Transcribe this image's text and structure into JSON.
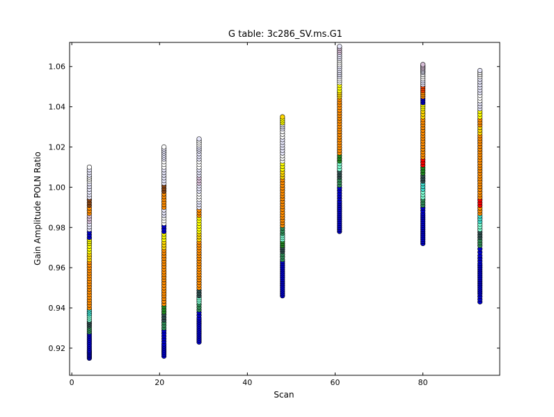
{
  "chart_data": {
    "type": "scatter",
    "title": "G table: 3c286_SV.ms.G1",
    "xlabel": "Scan",
    "ylabel": "Gain Amplitude POLN Ratio",
    "xlim": [
      -0.5,
      97.5
    ],
    "ylim": [
      0.9065,
      1.072
    ],
    "xticks": [
      0,
      20,
      40,
      60,
      80
    ],
    "xtick_labels": [
      "0",
      "20",
      "40",
      "60",
      "80"
    ],
    "yticks": [
      0.92,
      0.94,
      0.96,
      0.98,
      1.0,
      1.02,
      1.04,
      1.06
    ],
    "ytick_labels": [
      "0.92",
      "0.94",
      "0.96",
      "0.98",
      "1.00",
      "1.02",
      "1.04",
      "1.06"
    ],
    "grid": false,
    "legend": "none",
    "marker": "circle",
    "marker_edge_color": "#000000",
    "series": [
      {
        "scan": 4,
        "points": [
          {
            "y": 0.915,
            "color": "#0000cd"
          },
          {
            "y": 0.917,
            "color": "#0000cd"
          },
          {
            "y": 0.919,
            "color": "#0000cd"
          },
          {
            "y": 0.922,
            "color": "#0000cd"
          },
          {
            "y": 0.925,
            "color": "#0000cd"
          },
          {
            "y": 0.928,
            "color": "#2e8b57"
          },
          {
            "y": 0.931,
            "color": "#2f4f4f"
          },
          {
            "y": 0.934,
            "color": "#7fffd4"
          },
          {
            "y": 0.937,
            "color": "#40e0d0"
          },
          {
            "y": 0.94,
            "color": "#ff8c00"
          },
          {
            "y": 0.944,
            "color": "#ff8c00"
          },
          {
            "y": 0.948,
            "color": "#ff8c00"
          },
          {
            "y": 0.952,
            "color": "#ff8c00"
          },
          {
            "y": 0.956,
            "color": "#ff8c00"
          },
          {
            "y": 0.96,
            "color": "#ff8c00"
          },
          {
            "y": 0.964,
            "color": "#ffd700"
          },
          {
            "y": 0.968,
            "color": "#ffff00"
          },
          {
            "y": 0.972,
            "color": "#ffff00"
          },
          {
            "y": 0.975,
            "color": "#0000cd"
          },
          {
            "y": 0.979,
            "color": "#e6e6fa"
          },
          {
            "y": 0.983,
            "color": "#d8bfd8"
          },
          {
            "y": 0.987,
            "color": "#ff8c00"
          },
          {
            "y": 0.991,
            "color": "#8b4513"
          },
          {
            "y": 0.995,
            "color": "#e6e6fa"
          },
          {
            "y": 0.999,
            "color": "#e6e6fa"
          },
          {
            "y": 1.003,
            "color": "#ffffff"
          },
          {
            "y": 1.006,
            "color": "#e6e6fa"
          },
          {
            "y": 1.01,
            "color": "#ffffff"
          }
        ]
      },
      {
        "scan": 21,
        "points": [
          {
            "y": 0.916,
            "color": "#0000cd"
          },
          {
            "y": 0.919,
            "color": "#0000cd"
          },
          {
            "y": 0.922,
            "color": "#0000cd"
          },
          {
            "y": 0.926,
            "color": "#0000cd"
          },
          {
            "y": 0.93,
            "color": "#2e8b57"
          },
          {
            "y": 0.934,
            "color": "#2f4f4f"
          },
          {
            "y": 0.938,
            "color": "#228b22"
          },
          {
            "y": 0.942,
            "color": "#ff8c00"
          },
          {
            "y": 0.946,
            "color": "#ff8c00"
          },
          {
            "y": 0.95,
            "color": "#ff8c00"
          },
          {
            "y": 0.954,
            "color": "#ff8c00"
          },
          {
            "y": 0.958,
            "color": "#ff8c00"
          },
          {
            "y": 0.962,
            "color": "#ff8c00"
          },
          {
            "y": 0.966,
            "color": "#ff8c00"
          },
          {
            "y": 0.97,
            "color": "#ffd700"
          },
          {
            "y": 0.974,
            "color": "#ffff00"
          },
          {
            "y": 0.978,
            "color": "#0000cd"
          },
          {
            "y": 0.982,
            "color": "#ffffff"
          },
          {
            "y": 0.986,
            "color": "#e6e6fa"
          },
          {
            "y": 0.99,
            "color": "#ff8c00"
          },
          {
            "y": 0.994,
            "color": "#ff8c00"
          },
          {
            "y": 0.998,
            "color": "#8b4513"
          },
          {
            "y": 1.002,
            "color": "#e6e6fa"
          },
          {
            "y": 1.006,
            "color": "#e6e6fa"
          },
          {
            "y": 1.01,
            "color": "#ffffff"
          },
          {
            "y": 1.014,
            "color": "#e6e6fa"
          },
          {
            "y": 1.017,
            "color": "#e6e6fa"
          },
          {
            "y": 1.02,
            "color": "#ffffff"
          }
        ]
      },
      {
        "scan": 29,
        "points": [
          {
            "y": 0.923,
            "color": "#0000cd"
          },
          {
            "y": 0.926,
            "color": "#0000cd"
          },
          {
            "y": 0.929,
            "color": "#0000cd"
          },
          {
            "y": 0.932,
            "color": "#0000cd"
          },
          {
            "y": 0.935,
            "color": "#0000cd"
          },
          {
            "y": 0.939,
            "color": "#2e8b57"
          },
          {
            "y": 0.943,
            "color": "#7fffd4"
          },
          {
            "y": 0.946,
            "color": "#2f4f4f"
          },
          {
            "y": 0.95,
            "color": "#ff8c00"
          },
          {
            "y": 0.954,
            "color": "#ff8c00"
          },
          {
            "y": 0.958,
            "color": "#ff8c00"
          },
          {
            "y": 0.962,
            "color": "#ff8c00"
          },
          {
            "y": 0.966,
            "color": "#ff8c00"
          },
          {
            "y": 0.97,
            "color": "#ff8c00"
          },
          {
            "y": 0.974,
            "color": "#ffd700"
          },
          {
            "y": 0.978,
            "color": "#ffff00"
          },
          {
            "y": 0.982,
            "color": "#ffff00"
          },
          {
            "y": 0.986,
            "color": "#ff8c00"
          },
          {
            "y": 0.99,
            "color": "#e6e6fa"
          },
          {
            "y": 0.994,
            "color": "#ffffff"
          },
          {
            "y": 0.998,
            "color": "#e6e6fa"
          },
          {
            "y": 1.002,
            "color": "#d8bfd8"
          },
          {
            "y": 1.006,
            "color": "#e6e6fa"
          },
          {
            "y": 1.01,
            "color": "#ffffff"
          },
          {
            "y": 1.014,
            "color": "#e6e6fa"
          },
          {
            "y": 1.018,
            "color": "#e6e6fa"
          },
          {
            "y": 1.021,
            "color": "#ffffff"
          },
          {
            "y": 1.024,
            "color": "#e6e6fa"
          }
        ]
      },
      {
        "scan": 48,
        "points": [
          {
            "y": 0.946,
            "color": "#0000cd"
          },
          {
            "y": 0.949,
            "color": "#0000cd"
          },
          {
            "y": 0.952,
            "color": "#0000cd"
          },
          {
            "y": 0.955,
            "color": "#0000cd"
          },
          {
            "y": 0.958,
            "color": "#0000cd"
          },
          {
            "y": 0.961,
            "color": "#0000cd"
          },
          {
            "y": 0.964,
            "color": "#2e8b57"
          },
          {
            "y": 0.968,
            "color": "#2f4f4f"
          },
          {
            "y": 0.971,
            "color": "#228b22"
          },
          {
            "y": 0.974,
            "color": "#7fffd4"
          },
          {
            "y": 0.977,
            "color": "#2e8b57"
          },
          {
            "y": 0.981,
            "color": "#ff8c00"
          },
          {
            "y": 0.985,
            "color": "#ff8c00"
          },
          {
            "y": 0.989,
            "color": "#ff8c00"
          },
          {
            "y": 0.993,
            "color": "#ff8c00"
          },
          {
            "y": 0.997,
            "color": "#ff8c00"
          },
          {
            "y": 1.001,
            "color": "#ff8c00"
          },
          {
            "y": 1.005,
            "color": "#ffd700"
          },
          {
            "y": 1.009,
            "color": "#ffff00"
          },
          {
            "y": 1.013,
            "color": "#ffffff"
          },
          {
            "y": 1.017,
            "color": "#e6e6fa"
          },
          {
            "y": 1.021,
            "color": "#e6e6fa"
          },
          {
            "y": 1.025,
            "color": "#ffffff"
          },
          {
            "y": 1.029,
            "color": "#e6e6fa"
          },
          {
            "y": 1.032,
            "color": "#ffff00"
          },
          {
            "y": 1.035,
            "color": "#ffd700"
          }
        ]
      },
      {
        "scan": 61,
        "points": [
          {
            "y": 0.978,
            "color": "#0000cd"
          },
          {
            "y": 0.981,
            "color": "#0000cd"
          },
          {
            "y": 0.984,
            "color": "#0000cd"
          },
          {
            "y": 0.987,
            "color": "#0000cd"
          },
          {
            "y": 0.99,
            "color": "#0000cd"
          },
          {
            "y": 0.993,
            "color": "#0000cd"
          },
          {
            "y": 0.997,
            "color": "#0000cd"
          },
          {
            "y": 1.001,
            "color": "#2e8b57"
          },
          {
            "y": 1.005,
            "color": "#2f4f4f"
          },
          {
            "y": 1.009,
            "color": "#7fffd4"
          },
          {
            "y": 1.013,
            "color": "#228b22"
          },
          {
            "y": 1.017,
            "color": "#ff8c00"
          },
          {
            "y": 1.021,
            "color": "#ff8c00"
          },
          {
            "y": 1.025,
            "color": "#ff8c00"
          },
          {
            "y": 1.029,
            "color": "#ff8c00"
          },
          {
            "y": 1.033,
            "color": "#ff8c00"
          },
          {
            "y": 1.037,
            "color": "#ff8c00"
          },
          {
            "y": 1.041,
            "color": "#ff8c00"
          },
          {
            "y": 1.045,
            "color": "#ffd700"
          },
          {
            "y": 1.048,
            "color": "#ffff00"
          },
          {
            "y": 1.052,
            "color": "#ffffff"
          },
          {
            "y": 1.055,
            "color": "#e6e6fa"
          },
          {
            "y": 1.058,
            "color": "#e6e6fa"
          },
          {
            "y": 1.061,
            "color": "#ffffff"
          },
          {
            "y": 1.064,
            "color": "#e6e6fa"
          },
          {
            "y": 1.067,
            "color": "#d8bfd8"
          },
          {
            "y": 1.07,
            "color": "#e6e6fa"
          }
        ]
      },
      {
        "scan": 80,
        "points": [
          {
            "y": 0.972,
            "color": "#0000cd"
          },
          {
            "y": 0.975,
            "color": "#0000cd"
          },
          {
            "y": 0.978,
            "color": "#0000cd"
          },
          {
            "y": 0.981,
            "color": "#0000cd"
          },
          {
            "y": 0.984,
            "color": "#0000cd"
          },
          {
            "y": 0.987,
            "color": "#0000cd"
          },
          {
            "y": 0.991,
            "color": "#2e8b57"
          },
          {
            "y": 0.995,
            "color": "#7fffd4"
          },
          {
            "y": 0.999,
            "color": "#40e0d0"
          },
          {
            "y": 1.003,
            "color": "#2f4f4f"
          },
          {
            "y": 1.007,
            "color": "#228b22"
          },
          {
            "y": 1.011,
            "color": "#ff0000"
          },
          {
            "y": 1.015,
            "color": "#ff8c00"
          },
          {
            "y": 1.019,
            "color": "#ff8c00"
          },
          {
            "y": 1.023,
            "color": "#ff8c00"
          },
          {
            "y": 1.027,
            "color": "#ff8c00"
          },
          {
            "y": 1.031,
            "color": "#ff8c00"
          },
          {
            "y": 1.035,
            "color": "#ffd700"
          },
          {
            "y": 1.039,
            "color": "#ffff00"
          },
          {
            "y": 1.042,
            "color": "#0000cd"
          },
          {
            "y": 1.045,
            "color": "#ff8c00"
          },
          {
            "y": 1.048,
            "color": "#ff4500"
          },
          {
            "y": 1.051,
            "color": "#e6e6fa"
          },
          {
            "y": 1.054,
            "color": "#ffffff"
          },
          {
            "y": 1.057,
            "color": "#e6e6fa"
          },
          {
            "y": 1.059,
            "color": "#d8bfd8"
          },
          {
            "y": 1.061,
            "color": "#d8bfd8"
          }
        ]
      },
      {
        "scan": 93,
        "points": [
          {
            "y": 0.943,
            "color": "#0000cd"
          },
          {
            "y": 0.947,
            "color": "#0000cd"
          },
          {
            "y": 0.95,
            "color": "#0000cd"
          },
          {
            "y": 0.953,
            "color": "#0000cd"
          },
          {
            "y": 0.956,
            "color": "#0000cd"
          },
          {
            "y": 0.959,
            "color": "#0000cd"
          },
          {
            "y": 0.962,
            "color": "#0000cd"
          },
          {
            "y": 0.966,
            "color": "#0000cd"
          },
          {
            "y": 0.971,
            "color": "#2e8b57"
          },
          {
            "y": 0.975,
            "color": "#2f4f4f"
          },
          {
            "y": 0.979,
            "color": "#7fffd4"
          },
          {
            "y": 0.983,
            "color": "#40e0d0"
          },
          {
            "y": 0.987,
            "color": "#ff8c00"
          },
          {
            "y": 0.991,
            "color": "#ff0000"
          },
          {
            "y": 0.995,
            "color": "#ff8c00"
          },
          {
            "y": 0.999,
            "color": "#ff8c00"
          },
          {
            "y": 1.003,
            "color": "#ff8c00"
          },
          {
            "y": 1.007,
            "color": "#ff8c00"
          },
          {
            "y": 1.011,
            "color": "#ff8c00"
          },
          {
            "y": 1.015,
            "color": "#ff8c00"
          },
          {
            "y": 1.019,
            "color": "#ff8c00"
          },
          {
            "y": 1.023,
            "color": "#ff8c00"
          },
          {
            "y": 1.027,
            "color": "#ffd700"
          },
          {
            "y": 1.031,
            "color": "#ff8c00"
          },
          {
            "y": 1.035,
            "color": "#ffff00"
          },
          {
            "y": 1.039,
            "color": "#e6e6fa"
          },
          {
            "y": 1.043,
            "color": "#ffffff"
          },
          {
            "y": 1.047,
            "color": "#e6e6fa"
          },
          {
            "y": 1.051,
            "color": "#e6e6fa"
          },
          {
            "y": 1.055,
            "color": "#ffffff"
          },
          {
            "y": 1.058,
            "color": "#e6e6fa"
          }
        ]
      }
    ]
  }
}
